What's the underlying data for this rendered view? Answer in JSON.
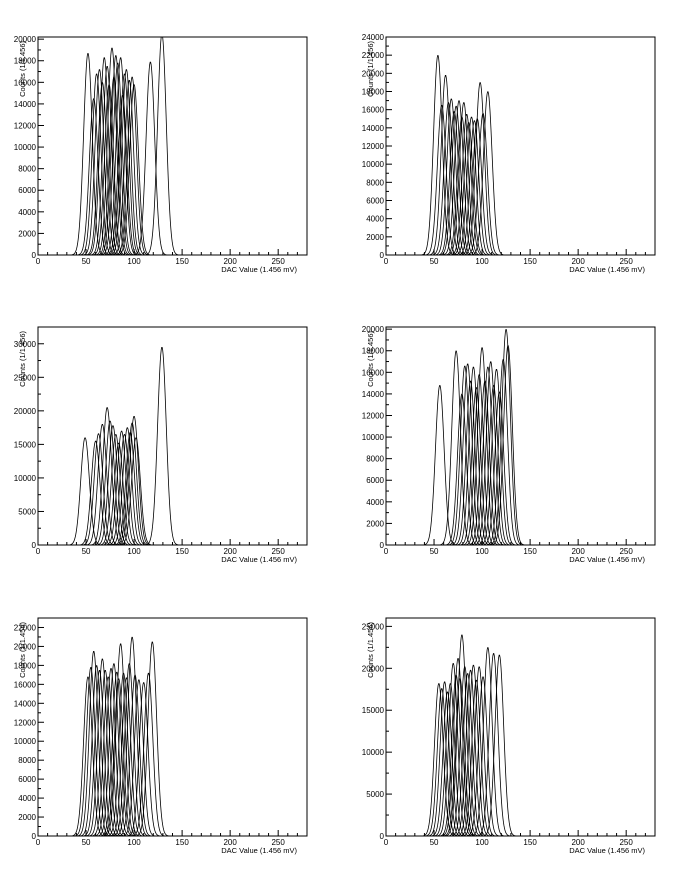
{
  "chart_data": [
    {
      "type": "line",
      "xlabel": "DAC Value (1.456 mV)",
      "ylabel": "Counts (1/1.456)",
      "xlim": [
        0,
        280
      ],
      "ylim": [
        0,
        20200
      ],
      "xticks": [
        0,
        50,
        100,
        150,
        200,
        250
      ],
      "yticks": [
        0,
        2000,
        4000,
        6000,
        8000,
        10000,
        12000,
        14000,
        16000,
        18000,
        20000
      ],
      "peak_width": 4.5,
      "peaks": [
        {
          "mu": 52,
          "amp": 18700
        },
        {
          "mu": 58,
          "amp": 14500
        },
        {
          "mu": 61,
          "amp": 16800
        },
        {
          "mu": 64,
          "amp": 17200
        },
        {
          "mu": 67,
          "amp": 16000
        },
        {
          "mu": 69,
          "amp": 18300
        },
        {
          "mu": 72,
          "amp": 17500
        },
        {
          "mu": 74,
          "amp": 15800
        },
        {
          "mu": 77,
          "amp": 19200
        },
        {
          "mu": 79,
          "amp": 16500
        },
        {
          "mu": 81,
          "amp": 18500
        },
        {
          "mu": 83,
          "amp": 17800
        },
        {
          "mu": 86,
          "amp": 18300
        },
        {
          "mu": 88,
          "amp": 14800
        },
        {
          "mu": 90,
          "amp": 16800
        },
        {
          "mu": 92,
          "amp": 17200
        },
        {
          "mu": 95,
          "amp": 16200
        },
        {
          "mu": 98,
          "amp": 16500
        },
        {
          "mu": 100,
          "amp": 15800
        },
        {
          "mu": 117,
          "amp": 17900
        },
        {
          "mu": 129,
          "amp": 20500
        }
      ]
    },
    {
      "type": "line",
      "xlabel": "DAC Value (1.456 mV)",
      "ylabel": "Counts (1/1.456)",
      "xlim": [
        0,
        280
      ],
      "ylim": [
        0,
        24000
      ],
      "xticks": [
        0,
        50,
        100,
        150,
        200,
        250
      ],
      "yticks": [
        0,
        2000,
        4000,
        6000,
        8000,
        10000,
        12000,
        14000,
        16000,
        18000,
        20000,
        22000,
        24000
      ],
      "peak_width": 4.5,
      "peaks": [
        {
          "mu": 54,
          "amp": 22000
        },
        {
          "mu": 58,
          "amp": 16500
        },
        {
          "mu": 62,
          "amp": 19800
        },
        {
          "mu": 65,
          "amp": 16800
        },
        {
          "mu": 68,
          "amp": 17200
        },
        {
          "mu": 71,
          "amp": 15800
        },
        {
          "mu": 73,
          "amp": 16400
        },
        {
          "mu": 76,
          "amp": 17000
        },
        {
          "mu": 79,
          "amp": 15200
        },
        {
          "mu": 81,
          "amp": 16800
        },
        {
          "mu": 84,
          "amp": 15500
        },
        {
          "mu": 86,
          "amp": 14600
        },
        {
          "mu": 89,
          "amp": 15200
        },
        {
          "mu": 92,
          "amp": 14800
        },
        {
          "mu": 95,
          "amp": 15000
        },
        {
          "mu": 98,
          "amp": 19000
        },
        {
          "mu": 101,
          "amp": 15600
        },
        {
          "mu": 106,
          "amp": 18000
        }
      ]
    },
    {
      "type": "line",
      "xlabel": "DAC Value (1.456 mV)",
      "ylabel": "Counts (1/1.456)",
      "xlim": [
        0,
        280
      ],
      "ylim": [
        0,
        32500
      ],
      "xticks": [
        0,
        50,
        100,
        150,
        200,
        250
      ],
      "yticks": [
        0,
        5000,
        10000,
        15000,
        20000,
        25000,
        30000
      ],
      "ytick_labels": [
        "0",
        "5000",
        "10000",
        "15000",
        "20000",
        "25000",
        "30000"
      ],
      "peak_width": 4.5,
      "peaks": [
        {
          "mu": 49,
          "amp": 16000
        },
        {
          "mu": 60,
          "amp": 15500
        },
        {
          "mu": 63,
          "amp": 16600
        },
        {
          "mu": 67,
          "amp": 18000
        },
        {
          "mu": 72,
          "amp": 20500
        },
        {
          "mu": 75,
          "amp": 18500
        },
        {
          "mu": 78,
          "amp": 17800
        },
        {
          "mu": 81,
          "amp": 16500
        },
        {
          "mu": 84,
          "amp": 15200
        },
        {
          "mu": 87,
          "amp": 17000
        },
        {
          "mu": 90,
          "amp": 16500
        },
        {
          "mu": 93,
          "amp": 17500
        },
        {
          "mu": 96,
          "amp": 16800
        },
        {
          "mu": 98,
          "amp": 18200
        },
        {
          "mu": 100,
          "amp": 19200
        },
        {
          "mu": 102,
          "amp": 16000
        },
        {
          "mu": 129,
          "amp": 29500
        }
      ]
    },
    {
      "type": "line",
      "xlabel": "DAC Value (1.456 mV)",
      "ylabel": "Counts (1/1.456)",
      "xlim": [
        0,
        280
      ],
      "ylim": [
        0,
        20200
      ],
      "xticks": [
        0,
        50,
        100,
        150,
        200,
        250
      ],
      "yticks": [
        0,
        2000,
        4000,
        6000,
        8000,
        10000,
        12000,
        14000,
        16000,
        18000,
        20000
      ],
      "peak_width": 4.5,
      "peaks": [
        {
          "mu": 56,
          "amp": 14800
        },
        {
          "mu": 73,
          "amp": 18000
        },
        {
          "mu": 79,
          "amp": 14000
        },
        {
          "mu": 82,
          "amp": 16600
        },
        {
          "mu": 85,
          "amp": 16800
        },
        {
          "mu": 88,
          "amp": 15200
        },
        {
          "mu": 91,
          "amp": 16500
        },
        {
          "mu": 94,
          "amp": 14600
        },
        {
          "mu": 97,
          "amp": 15800
        },
        {
          "mu": 100,
          "amp": 18300
        },
        {
          "mu": 103,
          "amp": 15200
        },
        {
          "mu": 106,
          "amp": 16500
        },
        {
          "mu": 109,
          "amp": 17000
        },
        {
          "mu": 112,
          "amp": 14800
        },
        {
          "mu": 115,
          "amp": 16300
        },
        {
          "mu": 118,
          "amp": 14200
        },
        {
          "mu": 122,
          "amp": 17200
        },
        {
          "mu": 125,
          "amp": 20000
        },
        {
          "mu": 127,
          "amp": 18500
        }
      ]
    },
    {
      "type": "line",
      "xlabel": "DAC Value (1.456 mV)",
      "ylabel": "Counts (1/1.456)",
      "xlim": [
        0,
        280
      ],
      "ylim": [
        0,
        23000
      ],
      "xticks": [
        0,
        50,
        100,
        150,
        200,
        250
      ],
      "yticks": [
        0,
        2000,
        4000,
        6000,
        8000,
        10000,
        12000,
        14000,
        16000,
        18000,
        20000,
        22000
      ],
      "peak_width": 4.5,
      "peaks": [
        {
          "mu": 52,
          "amp": 16800
        },
        {
          "mu": 55,
          "amp": 17800
        },
        {
          "mu": 58,
          "amp": 19500
        },
        {
          "mu": 61,
          "amp": 18000
        },
        {
          "mu": 64,
          "amp": 17500
        },
        {
          "mu": 67,
          "amp": 18700
        },
        {
          "mu": 70,
          "amp": 17500
        },
        {
          "mu": 73,
          "amp": 16800
        },
        {
          "mu": 76,
          "amp": 17700
        },
        {
          "mu": 79,
          "amp": 18200
        },
        {
          "mu": 82,
          "amp": 17300
        },
        {
          "mu": 84,
          "amp": 16600
        },
        {
          "mu": 86,
          "amp": 20300
        },
        {
          "mu": 89,
          "amp": 17200
        },
        {
          "mu": 92,
          "amp": 16700
        },
        {
          "mu": 95,
          "amp": 18200
        },
        {
          "mu": 98,
          "amp": 21000
        },
        {
          "mu": 101,
          "amp": 17000
        },
        {
          "mu": 105,
          "amp": 16500
        },
        {
          "mu": 110,
          "amp": 16200
        },
        {
          "mu": 115,
          "amp": 17200
        },
        {
          "mu": 119,
          "amp": 20500
        }
      ]
    },
    {
      "type": "line",
      "xlabel": "DAC Value (1.456 mV)",
      "ylabel": "Counts (1/1.456)",
      "xlim": [
        0,
        280
      ],
      "ylim": [
        0,
        26000
      ],
      "xticks": [
        0,
        50,
        100,
        150,
        200,
        250
      ],
      "yticks": [
        0,
        5000,
        10000,
        15000,
        20000,
        25000
      ],
      "peak_width": 4.5,
      "peaks": [
        {
          "mu": 55,
          "amp": 18200
        },
        {
          "mu": 58,
          "amp": 17600
        },
        {
          "mu": 61,
          "amp": 18400
        },
        {
          "mu": 64,
          "amp": 17200
        },
        {
          "mu": 67,
          "amp": 18200
        },
        {
          "mu": 70,
          "amp": 20600
        },
        {
          "mu": 73,
          "amp": 19200
        },
        {
          "mu": 75,
          "amp": 21200
        },
        {
          "mu": 77,
          "amp": 18800
        },
        {
          "mu": 79,
          "amp": 24000
        },
        {
          "mu": 82,
          "amp": 20200
        },
        {
          "mu": 85,
          "amp": 19400
        },
        {
          "mu": 88,
          "amp": 19800
        },
        {
          "mu": 91,
          "amp": 20400
        },
        {
          "mu": 94,
          "amp": 18600
        },
        {
          "mu": 97,
          "amp": 20200
        },
        {
          "mu": 101,
          "amp": 19000
        },
        {
          "mu": 106,
          "amp": 22500
        },
        {
          "mu": 112,
          "amp": 21800
        },
        {
          "mu": 118,
          "amp": 21600
        }
      ]
    }
  ]
}
